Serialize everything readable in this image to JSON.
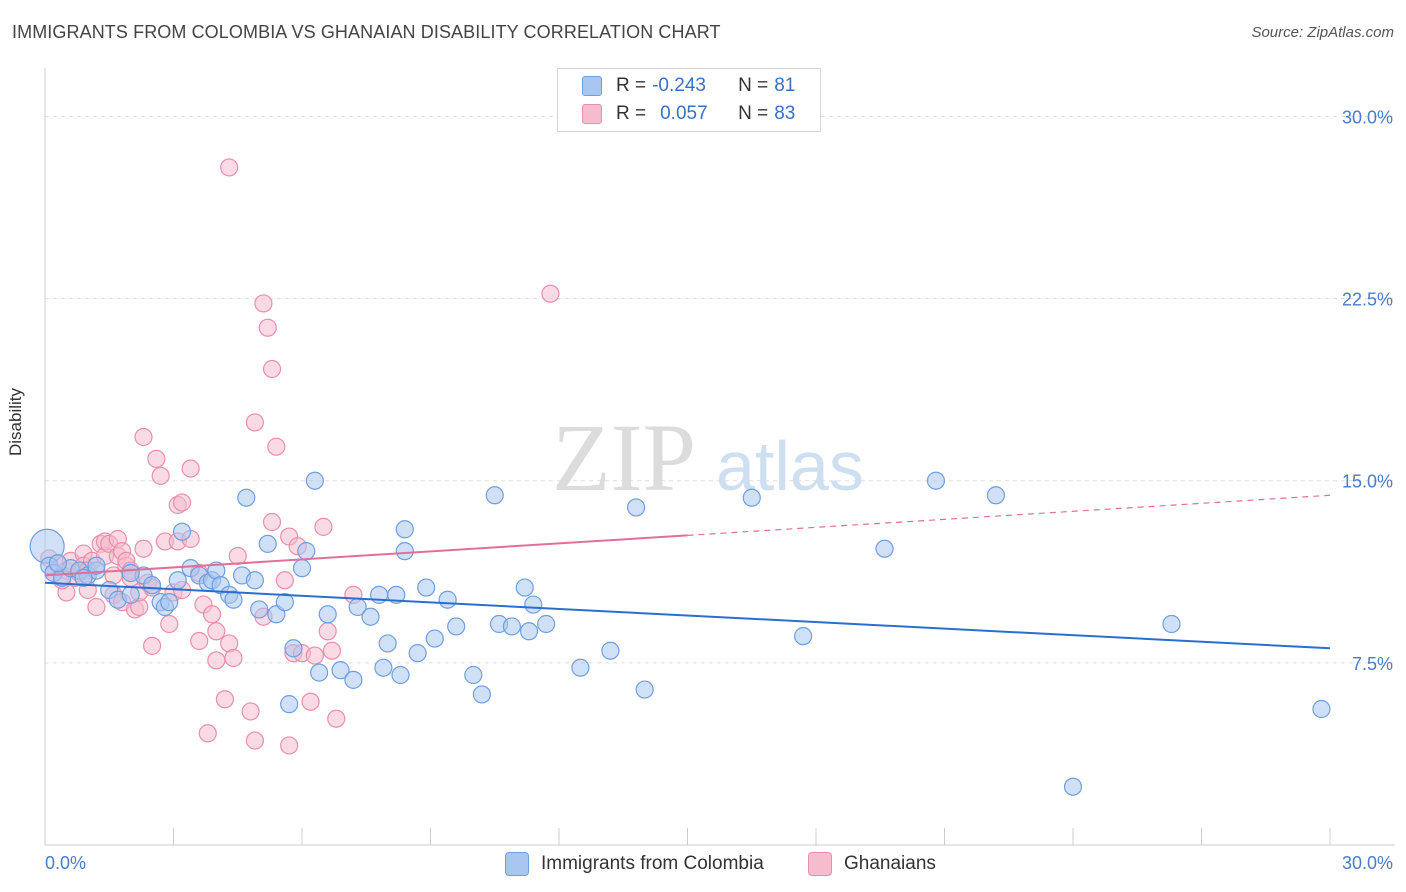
{
  "title": "IMMIGRANTS FROM COLOMBIA VS GHANAIAN DISABILITY CORRELATION CHART",
  "source": "Source: ZipAtlas.com",
  "watermark": {
    "zip": "ZIP",
    "atlas": "atlas"
  },
  "legend": {
    "row1": {
      "r_label": "R = ",
      "r_value": "-0.243",
      "n_label": "N = ",
      "n_value": "81"
    },
    "row2": {
      "r_label": "R = ",
      "r_value": "0.057",
      "n_label": "N = ",
      "n_value": "83"
    }
  },
  "colors": {
    "blue_fill": "#a9c6f0",
    "blue_stroke": "#6f9fe0",
    "blue_line": "#2a6fd0",
    "pink_fill": "#f6bccd",
    "pink_stroke": "#ea8fab",
    "pink_line": "#e0709a",
    "axis_text": "#4a7cc7"
  },
  "chart_data": {
    "type": "scatter",
    "title": "IMMIGRANTS FROM COLOMBIA VS GHANAIAN DISABILITY CORRELATION CHART",
    "xlabel": "",
    "ylabel": "Disability",
    "xlim": [
      0,
      30
    ],
    "ylim": [
      0,
      31.5
    ],
    "x_ticks": [
      "0.0%",
      "30.0%"
    ],
    "y_ticks": [
      {
        "value": 7.5,
        "label": "7.5%"
      },
      {
        "value": 15.0,
        "label": "15.0%"
      },
      {
        "value": 22.5,
        "label": "22.5%"
      },
      {
        "value": 30.0,
        "label": "30.0%"
      }
    ],
    "grid": "dashed horizontal",
    "legend_position": "top-center",
    "series": [
      {
        "name": "Immigrants from Colombia",
        "color": "#6f9fe0",
        "r": -0.243,
        "n": 81,
        "trend": {
          "x0": 0,
          "y0": 10.8,
          "x1": 30,
          "y1": 8.1,
          "dashed_from": null
        },
        "points": [
          [
            0.05,
            12.3
          ],
          [
            0.1,
            11.5
          ],
          [
            0.2,
            11.2
          ],
          [
            0.4,
            11.0
          ],
          [
            0.6,
            11.4
          ],
          [
            0.8,
            11.3
          ],
          [
            1.0,
            11.1
          ],
          [
            1.2,
            11.3
          ],
          [
            1.5,
            10.5
          ],
          [
            1.7,
            10.1
          ],
          [
            2.0,
            10.3
          ],
          [
            2.3,
            11.1
          ],
          [
            2.5,
            10.7
          ],
          [
            2.7,
            10.0
          ],
          [
            2.8,
            9.8
          ],
          [
            2.9,
            10.0
          ],
          [
            3.1,
            10.9
          ],
          [
            3.2,
            12.9
          ],
          [
            3.4,
            11.4
          ],
          [
            3.6,
            11.1
          ],
          [
            3.8,
            10.8
          ],
          [
            3.9,
            10.9
          ],
          [
            4.0,
            11.3
          ],
          [
            4.1,
            10.7
          ],
          [
            4.3,
            10.3
          ],
          [
            4.4,
            10.1
          ],
          [
            4.6,
            11.1
          ],
          [
            4.7,
            14.3
          ],
          [
            4.9,
            10.9
          ],
          [
            5.0,
            9.7
          ],
          [
            5.2,
            12.4
          ],
          [
            5.4,
            9.5
          ],
          [
            5.6,
            10.0
          ],
          [
            5.7,
            5.8
          ],
          [
            5.8,
            8.1
          ],
          [
            6.0,
            11.4
          ],
          [
            6.1,
            12.1
          ],
          [
            6.3,
            15.0
          ],
          [
            6.4,
            7.1
          ],
          [
            6.6,
            9.5
          ],
          [
            6.9,
            7.2
          ],
          [
            7.2,
            6.8
          ],
          [
            7.3,
            9.8
          ],
          [
            7.6,
            9.4
          ],
          [
            7.8,
            10.3
          ],
          [
            7.9,
            7.3
          ],
          [
            8.0,
            8.3
          ],
          [
            8.2,
            10.3
          ],
          [
            8.3,
            7.0
          ],
          [
            8.4,
            12.1
          ],
          [
            8.4,
            13.0
          ],
          [
            8.7,
            7.9
          ],
          [
            8.9,
            10.6
          ],
          [
            9.1,
            8.5
          ],
          [
            9.4,
            10.1
          ],
          [
            9.6,
            9.0
          ],
          [
            10.0,
            7.0
          ],
          [
            10.2,
            6.2
          ],
          [
            10.5,
            14.4
          ],
          [
            10.6,
            9.1
          ],
          [
            10.9,
            9.0
          ],
          [
            11.2,
            10.6
          ],
          [
            11.3,
            8.8
          ],
          [
            11.4,
            9.9
          ],
          [
            11.7,
            9.1
          ],
          [
            12.5,
            7.3
          ],
          [
            13.2,
            8.0
          ],
          [
            13.8,
            13.9
          ],
          [
            14.0,
            6.4
          ],
          [
            16.5,
            14.3
          ],
          [
            17.7,
            8.6
          ],
          [
            19.6,
            12.2
          ],
          [
            20.8,
            15.0
          ],
          [
            22.2,
            14.4
          ],
          [
            24.0,
            2.4
          ],
          [
            26.3,
            9.1
          ],
          [
            29.8,
            5.6
          ],
          [
            1.2,
            11.5
          ],
          [
            2.0,
            11.2
          ],
          [
            0.3,
            11.6
          ],
          [
            0.9,
            11.0
          ]
        ]
      },
      {
        "name": "Ghanaians",
        "color": "#ea8fab",
        "r": 0.057,
        "n": 83,
        "trend": {
          "x0": 0,
          "y0": 11.1,
          "x1": 30,
          "y1": 14.4,
          "dashed_from": 15.0
        },
        "points": [
          [
            0.1,
            11.8
          ],
          [
            0.2,
            11.2
          ],
          [
            0.3,
            11.6
          ],
          [
            0.5,
            11.3
          ],
          [
            0.5,
            10.4
          ],
          [
            0.6,
            11.7
          ],
          [
            0.7,
            11.0
          ],
          [
            0.8,
            11.2
          ],
          [
            0.9,
            12.0
          ],
          [
            0.9,
            11.5
          ],
          [
            1.0,
            10.5
          ],
          [
            1.1,
            11.7
          ],
          [
            1.2,
            9.8
          ],
          [
            1.3,
            12.4
          ],
          [
            1.4,
            11.9
          ],
          [
            1.4,
            12.5
          ],
          [
            1.5,
            12.4
          ],
          [
            1.6,
            11.1
          ],
          [
            1.6,
            10.3
          ],
          [
            1.7,
            12.6
          ],
          [
            1.7,
            11.9
          ],
          [
            1.8,
            10.0
          ],
          [
            1.8,
            12.1
          ],
          [
            1.9,
            11.5
          ],
          [
            1.9,
            11.7
          ],
          [
            2.0,
            11.3
          ],
          [
            2.0,
            11.0
          ],
          [
            2.1,
            9.7
          ],
          [
            2.2,
            9.8
          ],
          [
            2.2,
            10.4
          ],
          [
            2.3,
            16.8
          ],
          [
            2.4,
            10.8
          ],
          [
            2.5,
            8.2
          ],
          [
            2.5,
            10.6
          ],
          [
            2.6,
            15.9
          ],
          [
            2.7,
            15.2
          ],
          [
            2.8,
            12.5
          ],
          [
            2.9,
            9.1
          ],
          [
            3.0,
            10.4
          ],
          [
            3.1,
            14.0
          ],
          [
            3.1,
            12.5
          ],
          [
            3.2,
            14.1
          ],
          [
            3.2,
            10.5
          ],
          [
            3.4,
            12.6
          ],
          [
            3.4,
            15.5
          ],
          [
            3.6,
            8.4
          ],
          [
            3.6,
            11.2
          ],
          [
            3.7,
            9.9
          ],
          [
            3.8,
            4.6
          ],
          [
            3.9,
            9.5
          ],
          [
            4.0,
            7.6
          ],
          [
            4.0,
            8.8
          ],
          [
            4.2,
            6.0
          ],
          [
            4.3,
            8.3
          ],
          [
            4.3,
            27.9
          ],
          [
            4.4,
            7.7
          ],
          [
            4.5,
            11.9
          ],
          [
            4.8,
            5.5
          ],
          [
            4.9,
            4.3
          ],
          [
            4.9,
            17.4
          ],
          [
            5.1,
            22.3
          ],
          [
            5.1,
            9.4
          ],
          [
            5.2,
            21.3
          ],
          [
            5.3,
            19.6
          ],
          [
            5.3,
            13.3
          ],
          [
            5.4,
            16.4
          ],
          [
            5.6,
            10.9
          ],
          [
            5.7,
            12.7
          ],
          [
            5.7,
            4.1
          ],
          [
            5.8,
            7.9
          ],
          [
            5.9,
            12.3
          ],
          [
            6.0,
            7.9
          ],
          [
            6.2,
            5.9
          ],
          [
            6.3,
            7.8
          ],
          [
            6.5,
            13.1
          ],
          [
            6.6,
            8.8
          ],
          [
            6.7,
            8.0
          ],
          [
            6.8,
            5.2
          ],
          [
            7.2,
            10.3
          ],
          [
            11.8,
            22.7
          ],
          [
            0.4,
            10.9
          ],
          [
            1.0,
            11.3
          ],
          [
            2.3,
            12.2
          ]
        ]
      }
    ]
  },
  "bottom_legend": {
    "item1": "Immigrants from Colombia",
    "item2": "Ghanaians"
  }
}
